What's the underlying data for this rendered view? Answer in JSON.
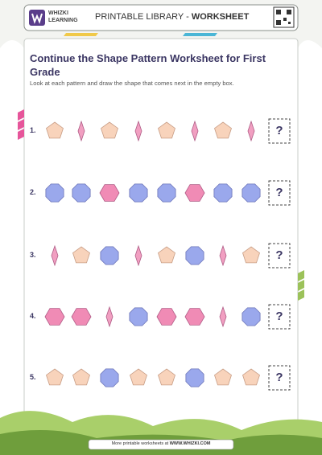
{
  "header": {
    "logo_top": "WHIZKI",
    "logo_bottom": "LEARNING",
    "label": "PRINTABLE LIBRARY - ",
    "label_bold": "WORKSHEET"
  },
  "title": "Continue the Shape Pattern Worksheet for First Grade",
  "instructions": "Look at each pattern and draw the shape that comes next in the empty box.",
  "rows": [
    {
      "number": "1.",
      "answer": "?"
    },
    {
      "number": "2.",
      "answer": "?"
    },
    {
      "number": "3.",
      "answer": "?"
    },
    {
      "number": "4.",
      "answer": "?"
    },
    {
      "number": "5.",
      "answer": "?"
    }
  ],
  "footer": {
    "text": "More printable worksheets at ",
    "link": "WWW.WHIZKI.COM"
  }
}
